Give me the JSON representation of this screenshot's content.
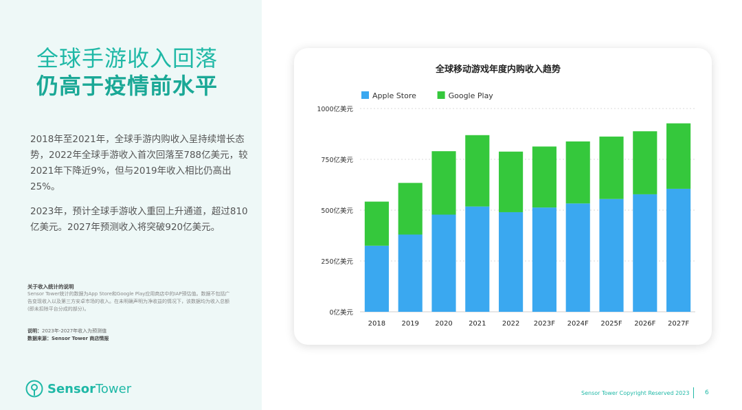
{
  "headline": {
    "line1": "全球手游收入回落",
    "line2": "仍高于疫情前水平"
  },
  "paragraphs": [
    "2018年至2021年，全球手游内购收入呈持续增长态势，2022年全球手游收入首次回落至788亿美元，较2021年下降近9%，但与2019年收入相比仍高出25%。",
    "2023年，预计全球手游收入重回上升通道，超过810亿美元。2027年预测收入将突破920亿美元。"
  ],
  "notes": {
    "title": "关于收入统计的说明",
    "body": "Sensor Tower统计的数据为App Store和Google Play应用商店中的IAP预估值。数据不包括广告变现收入以及第三方安卓市场的收入。在未明确声明为净收益的情况下，该数据均为收入总额(即未扣除平台分成的部分)。",
    "explain_label": "说明：",
    "explain_text": "2023年-2027年收入为预测值",
    "source_label": "数据来源：",
    "source_text": "Sensor Tower 商店情报"
  },
  "brand": {
    "name_bold": "Sensor",
    "name_regular": "Tower",
    "logo_icon": "sensor-tower-logo-icon",
    "color": "#1fb8a6"
  },
  "footer": {
    "copyright": "Sensor Tower Copyright Reserved 2023",
    "page": "6"
  },
  "colors": {
    "accent": "#1fb8a6",
    "apple": "#3aa8f0",
    "google": "#35c83c"
  },
  "chart_data": {
    "type": "bar",
    "stacked": true,
    "title": "全球移动游戏年度内购收入趋势",
    "categories": [
      "2018",
      "2019",
      "2020",
      "2021",
      "2022",
      "2023F",
      "2024F",
      "2025F",
      "2026F",
      "2027F"
    ],
    "series": [
      {
        "name": "Apple Store",
        "color": "#3aa8f0",
        "values": [
          325,
          380,
          478,
          518,
          490,
          513,
          533,
          555,
          578,
          605
        ]
      },
      {
        "name": "Google Play",
        "color": "#35c83c",
        "values": [
          217,
          254,
          312,
          351,
          298,
          300,
          305,
          307,
          310,
          322
        ]
      }
    ],
    "yticks": [
      "0亿美元",
      "250亿美元",
      "500亿美元",
      "750亿美元",
      "1000亿美元"
    ],
    "ylim": [
      0,
      1000
    ],
    "grid": true,
    "legend": "top-left"
  }
}
